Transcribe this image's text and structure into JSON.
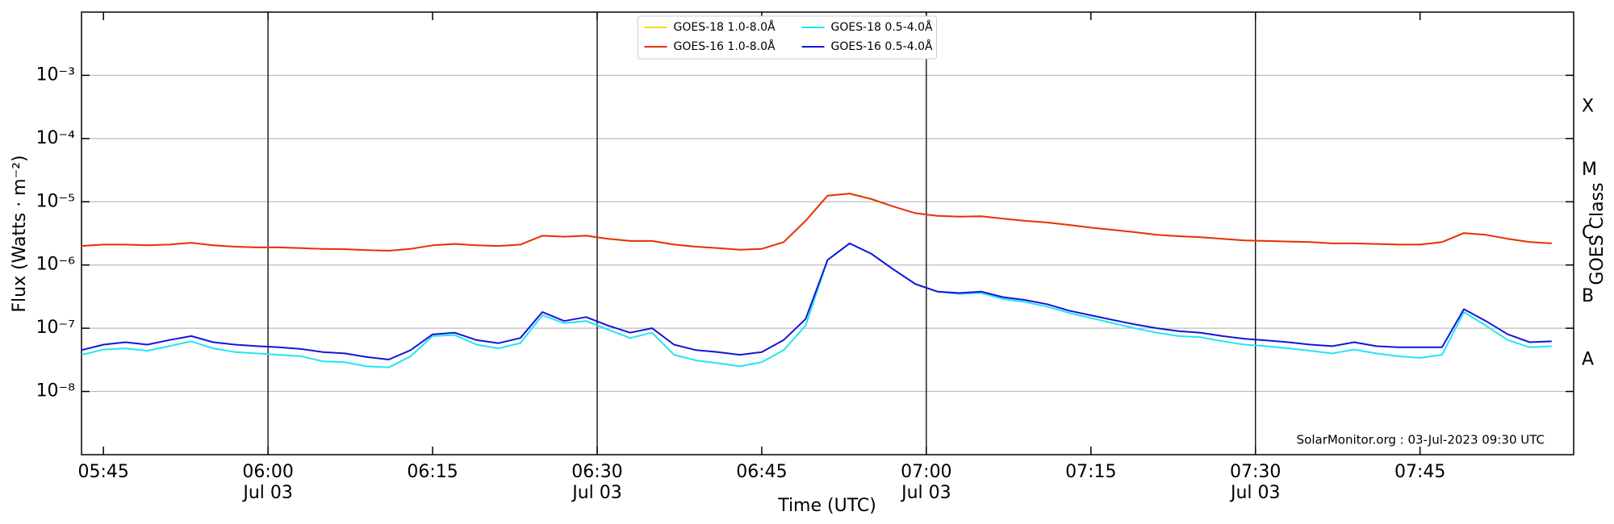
{
  "chart_data": {
    "type": "line",
    "xlabel": "Time (UTC)",
    "ylabel": "Flux (Watts · m⁻²)",
    "y2label": "GOES Class",
    "annotation": "SolarMonitor.org : 03-Jul-2023 09:30 UTC",
    "log_y": true,
    "grid": true,
    "legend": "upper center",
    "xlim": [
      "05:43",
      "07:59"
    ],
    "xticks": [
      {
        "value": "05:45",
        "label": "05:45"
      },
      {
        "value": "06:00",
        "label": "06:00",
        "sublabel": "Jul 03"
      },
      {
        "value": "06:15",
        "label": "06:15"
      },
      {
        "value": "06:30",
        "label": "06:30",
        "sublabel": "Jul 03"
      },
      {
        "value": "06:45",
        "label": "06:45"
      },
      {
        "value": "07:00",
        "label": "07:00",
        "sublabel": "Jul 03"
      },
      {
        "value": "07:15",
        "label": "07:15"
      },
      {
        "value": "07:30",
        "label": "07:30",
        "sublabel": "Jul 03"
      },
      {
        "value": "07:45",
        "label": "07:45"
      }
    ],
    "ylim": [
      1e-09,
      0.01
    ],
    "yticks": [
      {
        "value": 1e-08,
        "label": "10⁻⁸"
      },
      {
        "value": 1e-07,
        "label": "10⁻⁷"
      },
      {
        "value": 1e-06,
        "label": "10⁻⁶"
      },
      {
        "value": 1e-05,
        "label": "10⁻⁵"
      },
      {
        "value": 0.0001,
        "label": "10⁻⁴"
      },
      {
        "value": 0.001,
        "label": "10⁻³"
      }
    ],
    "y2lim": [
      1e-09,
      0.01
    ],
    "y2ticks": [
      {
        "value": 3.16e-08,
        "label": "A"
      },
      {
        "value": 3.16e-07,
        "label": "B"
      },
      {
        "value": 3.16e-06,
        "label": "C"
      },
      {
        "value": 3.16e-05,
        "label": "M"
      },
      {
        "value": 0.000316,
        "label": "X"
      }
    ],
    "x": [
      "05:43",
      "05:45",
      "05:47",
      "05:49",
      "05:51",
      "05:53",
      "05:55",
      "05:57",
      "05:59",
      "06:01",
      "06:03",
      "06:05",
      "06:07",
      "06:09",
      "06:11",
      "06:13",
      "06:15",
      "06:17",
      "06:19",
      "06:21",
      "06:23",
      "06:25",
      "06:27",
      "06:29",
      "06:31",
      "06:33",
      "06:35",
      "06:37",
      "06:39",
      "06:41",
      "06:43",
      "06:45",
      "06:47",
      "06:49",
      "06:51",
      "06:53",
      "06:55",
      "06:57",
      "06:59",
      "07:01",
      "07:03",
      "07:05",
      "07:07",
      "07:09",
      "07:11",
      "07:13",
      "07:15",
      "07:17",
      "07:19",
      "07:21",
      "07:23",
      "07:25",
      "07:27",
      "07:29",
      "07:31",
      "07:33",
      "07:35",
      "07:37",
      "07:39",
      "07:41",
      "07:43",
      "07:45",
      "07:47",
      "07:49",
      "07:51",
      "07:53",
      "07:55",
      "07:57"
    ],
    "series": [
      {
        "name": "GOES-18 1.0-8.0Å",
        "color": "#ffd700",
        "values": [
          2e-06,
          2.1e-06,
          2.1e-06,
          2.05e-06,
          2.1e-06,
          2.25e-06,
          2.05e-06,
          1.95e-06,
          1.9e-06,
          1.9e-06,
          1.85e-06,
          1.8e-06,
          1.78e-06,
          1.72e-06,
          1.68e-06,
          1.8e-06,
          2.05e-06,
          2.15e-06,
          2.05e-06,
          2e-06,
          2.1e-06,
          2.9e-06,
          2.8e-06,
          2.9e-06,
          2.6e-06,
          2.4e-06,
          2.4e-06,
          2.1e-06,
          1.95e-06,
          1.85e-06,
          1.75e-06,
          1.8e-06,
          2.3e-06,
          5e-06,
          1.25e-05,
          1.35e-05,
          1.1e-05,
          8.4e-06,
          6.6e-06,
          6e-06,
          5.8e-06,
          5.9e-06,
          5.4e-06,
          5e-06,
          4.7e-06,
          4.3e-06,
          3.9e-06,
          3.6e-06,
          3.3e-06,
          3e-06,
          2.85e-06,
          2.75e-06,
          2.6e-06,
          2.45e-06,
          2.4e-06,
          2.35e-06,
          2.3e-06,
          2.2e-06,
          2.2e-06,
          2.15e-06,
          2.1e-06,
          2.1e-06,
          2.3e-06,
          3.2e-06,
          3e-06,
          2.6e-06,
          2.3e-06,
          2.2e-06
        ]
      },
      {
        "name": "GOES-16 1.0-8.0Å",
        "color": "#e8310e",
        "values": [
          2e-06,
          2.1e-06,
          2.1e-06,
          2.05e-06,
          2.1e-06,
          2.25e-06,
          2.05e-06,
          1.95e-06,
          1.9e-06,
          1.9e-06,
          1.85e-06,
          1.8e-06,
          1.78e-06,
          1.72e-06,
          1.68e-06,
          1.8e-06,
          2.05e-06,
          2.15e-06,
          2.05e-06,
          2e-06,
          2.1e-06,
          2.9e-06,
          2.8e-06,
          2.9e-06,
          2.6e-06,
          2.4e-06,
          2.4e-06,
          2.1e-06,
          1.95e-06,
          1.85e-06,
          1.75e-06,
          1.8e-06,
          2.3e-06,
          5e-06,
          1.25e-05,
          1.35e-05,
          1.1e-05,
          8.4e-06,
          6.6e-06,
          6e-06,
          5.8e-06,
          5.9e-06,
          5.4e-06,
          5e-06,
          4.7e-06,
          4.3e-06,
          3.9e-06,
          3.6e-06,
          3.3e-06,
          3e-06,
          2.85e-06,
          2.75e-06,
          2.6e-06,
          2.45e-06,
          2.4e-06,
          2.35e-06,
          2.3e-06,
          2.2e-06,
          2.2e-06,
          2.15e-06,
          2.1e-06,
          2.1e-06,
          2.3e-06,
          3.2e-06,
          3e-06,
          2.6e-06,
          2.3e-06,
          2.2e-06
        ]
      },
      {
        "name": "GOES-18 0.5-4.0Å",
        "color": "#22e5f0",
        "values": [
          3.8e-08,
          4.6e-08,
          4.8e-08,
          4.4e-08,
          5.2e-08,
          6.2e-08,
          4.8e-08,
          4.2e-08,
          4e-08,
          3.8e-08,
          3.6e-08,
          3e-08,
          2.9e-08,
          2.5e-08,
          2.4e-08,
          3.6e-08,
          7.5e-08,
          7.8e-08,
          5.5e-08,
          4.8e-08,
          5.8e-08,
          1.6e-07,
          1.2e-07,
          1.3e-07,
          9.5e-08,
          7e-08,
          8.5e-08,
          3.8e-08,
          3.1e-08,
          2.8e-08,
          2.5e-08,
          2.9e-08,
          4.5e-08,
          1.1e-07,
          1.2e-06,
          2.2e-06,
          1.5e-06,
          8.5e-07,
          5e-07,
          3.8e-07,
          3.5e-07,
          3.6e-07,
          2.9e-07,
          2.6e-07,
          2.2e-07,
          1.75e-07,
          1.45e-07,
          1.2e-07,
          1e-07,
          8.5e-08,
          7.5e-08,
          7.2e-08,
          6.2e-08,
          5.5e-08,
          5.2e-08,
          4.8e-08,
          4.4e-08,
          4e-08,
          4.6e-08,
          4e-08,
          3.6e-08,
          3.4e-08,
          3.8e-08,
          1.8e-07,
          1.1e-07,
          6.5e-08,
          5e-08,
          5.2e-08
        ]
      },
      {
        "name": "GOES-16 0.5-4.0Å",
        "color": "#1414d8",
        "values": [
          4.5e-08,
          5.5e-08,
          6e-08,
          5.5e-08,
          6.5e-08,
          7.5e-08,
          6e-08,
          5.5e-08,
          5.2e-08,
          5e-08,
          4.7e-08,
          4.2e-08,
          4e-08,
          3.5e-08,
          3.2e-08,
          4.5e-08,
          8e-08,
          8.5e-08,
          6.5e-08,
          5.8e-08,
          7e-08,
          1.8e-07,
          1.3e-07,
          1.5e-07,
          1.1e-07,
          8.5e-08,
          1e-07,
          5.5e-08,
          4.5e-08,
          4.2e-08,
          3.8e-08,
          4.2e-08,
          6.5e-08,
          1.4e-07,
          1.2e-06,
          2.2e-06,
          1.5e-06,
          8.5e-07,
          5e-07,
          3.8e-07,
          3.6e-07,
          3.8e-07,
          3.1e-07,
          2.8e-07,
          2.4e-07,
          1.9e-07,
          1.6e-07,
          1.35e-07,
          1.15e-07,
          1e-07,
          9e-08,
          8.5e-08,
          7.5e-08,
          6.8e-08,
          6.4e-08,
          6e-08,
          5.5e-08,
          5.2e-08,
          6e-08,
          5.2e-08,
          5e-08,
          5e-08,
          5e-08,
          2e-07,
          1.3e-07,
          8e-08,
          6e-08,
          6.2e-08
        ]
      }
    ]
  }
}
